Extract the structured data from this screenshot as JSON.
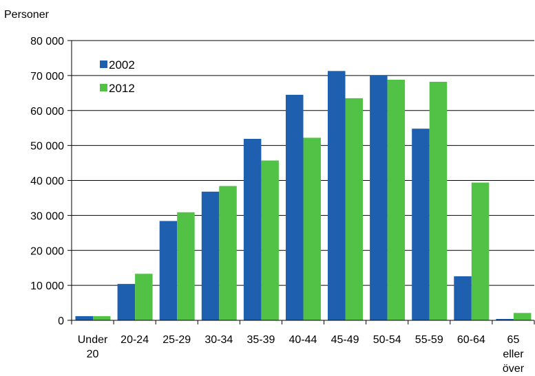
{
  "chart_data": {
    "type": "bar",
    "ylabel": "Personer",
    "xlabel": "",
    "ylim": [
      0,
      80000
    ],
    "yticks": [
      0,
      10000,
      20000,
      30000,
      40000,
      50000,
      60000,
      70000,
      80000
    ],
    "ytick_labels": [
      "0",
      "10 000",
      "20 000",
      "30 000",
      "40 000",
      "50 000",
      "60 000",
      "70 000",
      "80 000"
    ],
    "categories": [
      "Under 20",
      "20-24",
      "25-29",
      "30-34",
      "35-39",
      "40-44",
      "45-49",
      "50-54",
      "55-59",
      "60-64",
      "65 eller över"
    ],
    "category_lines": [
      [
        "Under",
        "20"
      ],
      [
        "20-24"
      ],
      [
        "25-29"
      ],
      [
        "30-34"
      ],
      [
        "35-39"
      ],
      [
        "40-44"
      ],
      [
        "45-49"
      ],
      [
        "50-54"
      ],
      [
        "55-59"
      ],
      [
        "60-64"
      ],
      [
        "65",
        "eller",
        "över"
      ]
    ],
    "series": [
      {
        "name": "2002",
        "color": "#1f5fb0",
        "values": [
          1200,
          10400,
          28400,
          36800,
          51900,
          64500,
          71300,
          70000,
          54800,
          12600,
          400
        ]
      },
      {
        "name": "2012",
        "color": "#52c246",
        "values": [
          1200,
          13300,
          30900,
          38400,
          45700,
          52200,
          63500,
          68800,
          68200,
          39400,
          2100
        ]
      }
    ],
    "grid": true,
    "legend_position": "top-left"
  }
}
